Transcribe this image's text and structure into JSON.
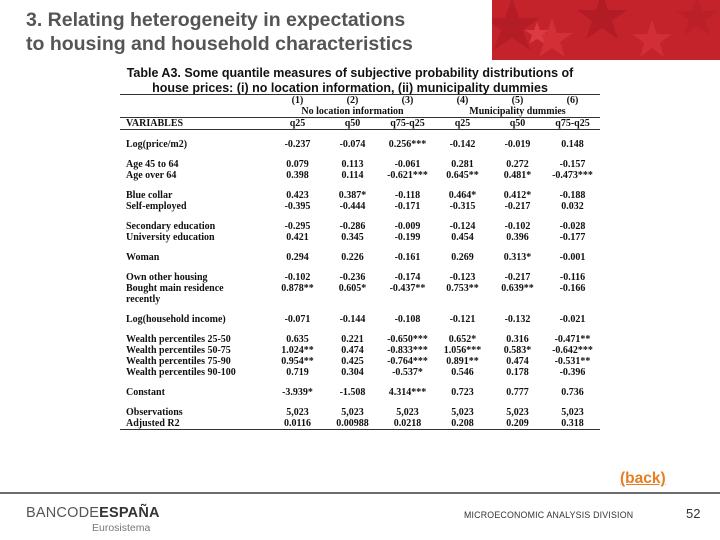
{
  "slide": {
    "title_line1": "3. Relating heterogeneity in expectations",
    "title_line2": "to housing and household characteristics",
    "accent_color": "#c4232c",
    "caption_line1": "Table A3. Some quantile measures of subjective probability distributions of",
    "caption_line2": "house prices: (i) no location information, (ii) municipality dummies"
  },
  "table": {
    "col_numbers": [
      "(1)",
      "(2)",
      "(3)",
      "(4)",
      "(5)",
      "(6)"
    ],
    "group_labels": [
      "No location information",
      "Municipality dummies"
    ],
    "var_header": "VARIABLES",
    "col_labels": [
      "q25",
      "q50",
      "q75-q25",
      "q25",
      "q50",
      "q75-q25"
    ],
    "rows": [
      {
        "label": "Log(price/m2)",
        "values": [
          "-0.237",
          "-0.074",
          "0.256***",
          "-0.142",
          "-0.019",
          "0.148"
        ]
      },
      {
        "gap": true
      },
      {
        "label": "Age 45 to 64",
        "values": [
          "0.079",
          "0.113",
          "-0.061",
          "0.281",
          "0.272",
          "-0.157"
        ]
      },
      {
        "label": "Age over 64",
        "values": [
          "0.398",
          "0.114",
          "-0.621***",
          "0.645**",
          "0.481*",
          "-0.473***"
        ]
      },
      {
        "gap": true
      },
      {
        "label": "Blue collar",
        "values": [
          "0.423",
          "0.387*",
          "-0.118",
          "0.464*",
          "0.412*",
          "-0.188"
        ]
      },
      {
        "label": "Self-employed",
        "values": [
          "-0.395",
          "-0.444",
          "-0.171",
          "-0.315",
          "-0.217",
          "0.032"
        ]
      },
      {
        "gap": true
      },
      {
        "label": "Secondary education",
        "values": [
          "-0.295",
          "-0.286",
          "-0.009",
          "-0.124",
          "-0.102",
          "-0.028"
        ]
      },
      {
        "label": "University education",
        "values": [
          "0.421",
          "0.345",
          "-0.199",
          "0.454",
          "0.396",
          "-0.177"
        ]
      },
      {
        "gap": true
      },
      {
        "label": "Woman",
        "values": [
          "0.294",
          "0.226",
          "-0.161",
          "0.269",
          "0.313*",
          "-0.001"
        ]
      },
      {
        "gap": true
      },
      {
        "label": "Own other housing",
        "values": [
          "-0.102",
          "-0.236",
          "-0.174",
          "-0.123",
          "-0.217",
          "-0.116"
        ]
      },
      {
        "label": "Bought main residence",
        "values": [
          "0.878**",
          "0.605*",
          "-0.437**",
          "0.753**",
          "0.639**",
          "-0.166"
        ]
      },
      {
        "label": "recently",
        "values": [
          "",
          "",
          "",
          "",
          "",
          ""
        ]
      },
      {
        "gap": true
      },
      {
        "label": "Log(household income)",
        "values": [
          "-0.071",
          "-0.144",
          "-0.108",
          "-0.121",
          "-0.132",
          "-0.021"
        ]
      },
      {
        "gap": true
      },
      {
        "label": "Wealth percentiles 25-50",
        "values": [
          "0.635",
          "0.221",
          "-0.650***",
          "0.652*",
          "0.316",
          "-0.471**"
        ]
      },
      {
        "label": "Wealth percentiles 50-75",
        "values": [
          "1.024**",
          "0.474",
          "-0.833***",
          "1.056***",
          "0.583*",
          "-0.642***"
        ]
      },
      {
        "label": "Wealth percentiles 75-90",
        "values": [
          "0.954**",
          "0.425",
          "-0.764***",
          "0.891**",
          "0.474",
          "-0.531**"
        ]
      },
      {
        "label": "Wealth percentiles 90-100",
        "values": [
          "0.719",
          "0.304",
          "-0.537*",
          "0.546",
          "0.178",
          "-0.396"
        ]
      },
      {
        "gap": true
      },
      {
        "label": "Constant",
        "values": [
          "-3.939*",
          "-1.508",
          "4.314***",
          "0.723",
          "0.777",
          "0.736"
        ]
      },
      {
        "gap": true
      },
      {
        "label": "Observations",
        "values": [
          "5,023",
          "5,023",
          "5,023",
          "5,023",
          "5,023",
          "5,023"
        ]
      },
      {
        "label": "Adjusted R2",
        "values": [
          "0.0116",
          "0.00988",
          "0.0218",
          "0.208",
          "0.209",
          "0.318"
        ],
        "last": true
      }
    ]
  },
  "nav": {
    "back_label": "(back)"
  },
  "footer": {
    "logo_part1": "BANCODE",
    "logo_part2": "ESPAÑA",
    "eurosystem": "Eurosistema",
    "division": "MICROECONOMIC ANALYSIS DIVISION",
    "page_number": "52"
  }
}
